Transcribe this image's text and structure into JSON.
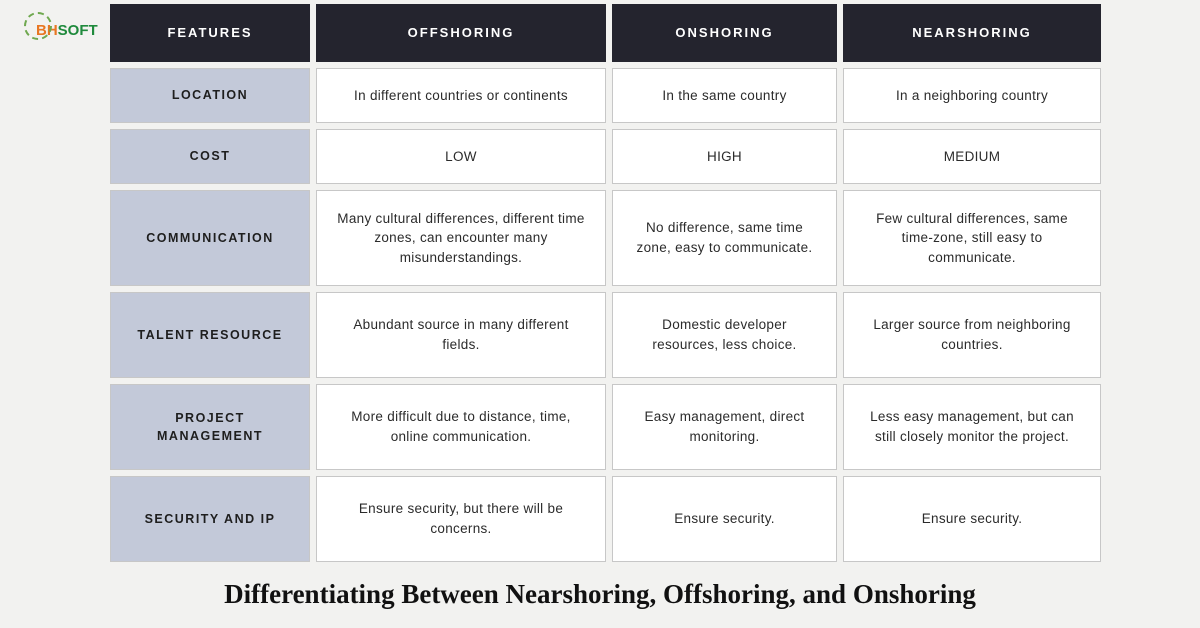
{
  "logo": {
    "part1": "BH",
    "part2": "SOFT"
  },
  "title": "Differentiating Between Nearshoring, Offshoring, and Onshoring",
  "headers": [
    "FEATURES",
    "OFFSHORING",
    "ONSHORING",
    "NEARSHORING"
  ],
  "rows": [
    {
      "label": "LOCATION",
      "height": "h-short",
      "cells": [
        "In different countries or continents",
        "In the same country",
        "In a neighboring country"
      ]
    },
    {
      "label": "COST",
      "height": "h-short",
      "cells": [
        "LOW",
        "HIGH",
        "MEDIUM"
      ]
    },
    {
      "label": "COMMUNICATION",
      "height": "h-med",
      "cells": [
        "Many cultural differences, different time zones, can encounter many misunderstandings.",
        "No difference, same time zone, easy to communicate.",
        "Few cultural differences, same time-zone, still easy to communicate."
      ]
    },
    {
      "label": "TALENT RESOURCE",
      "height": "h-tall",
      "cells": [
        "Abundant source in many different fields.",
        "Domestic developer resources, less choice.",
        "Larger source from neighboring countries."
      ]
    },
    {
      "label": "PROJECT MANAGEMENT",
      "height": "h-tall",
      "cells": [
        "More difficult due to distance, time, online communication.",
        "Easy management, direct monitoring.",
        "Less easy management, but can still closely monitor the project."
      ]
    },
    {
      "label": "SECURITY AND IP",
      "height": "h-tall",
      "cells": [
        "Ensure security, but there will be concerns.",
        "Ensure security.",
        "Ensure security."
      ]
    }
  ],
  "colors": {
    "page_bg": "#f2f2f0",
    "header_bg": "#24242e",
    "header_text": "#ffffff",
    "row_label_bg": "#c3c9d9",
    "cell_bg": "#ffffff",
    "cell_border": "#c7c7c7",
    "text": "#2b2b2b"
  }
}
